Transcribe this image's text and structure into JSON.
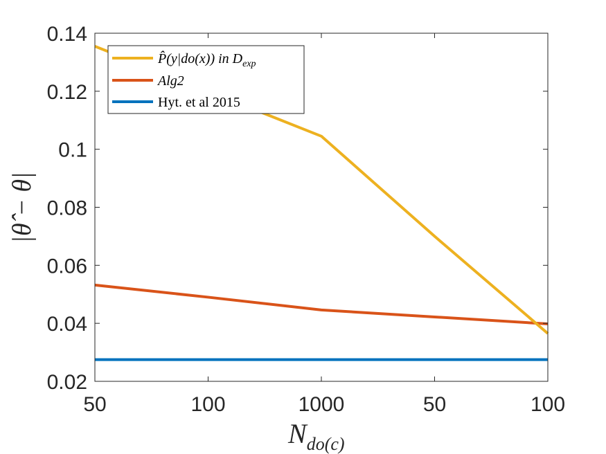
{
  "chart_data": {
    "type": "line",
    "title": "",
    "xlabel": "N",
    "xlabel_subscript": "do(c)",
    "ylabel": "|θ̂ − θ|",
    "x_tick_labels": [
      "50",
      "100",
      "1000",
      "50",
      "100"
    ],
    "y_ticks": [
      "0.02",
      "0.04",
      "0.06",
      "0.08",
      "0.1",
      "0.12",
      "0.14"
    ],
    "ylim": [
      0.02,
      0.14
    ],
    "grid": false,
    "legend_position": "top-left",
    "series": [
      {
        "name": "P̂(y|do(x)) in D_exp",
        "legend_main": "P̂(y|do(x)) in D",
        "legend_sub": "exp",
        "color": "#EDB120",
        "values": [
          0.1355,
          0.12,
          0.1045,
          0.07,
          0.0365
        ]
      },
      {
        "name": "Alg2",
        "legend_main": "Alg2",
        "legend_sub": "",
        "color": "#D95319",
        "values": [
          0.0532,
          0.049,
          0.0446,
          0.0422,
          0.0398
        ]
      },
      {
        "name": "Hyt. et al 2015",
        "legend_main": "Hyt. et al 2015",
        "legend_sub": "",
        "color": "#0072BD",
        "values": [
          0.0275,
          0.0275,
          0.0275,
          0.0275,
          0.0275
        ]
      }
    ]
  }
}
